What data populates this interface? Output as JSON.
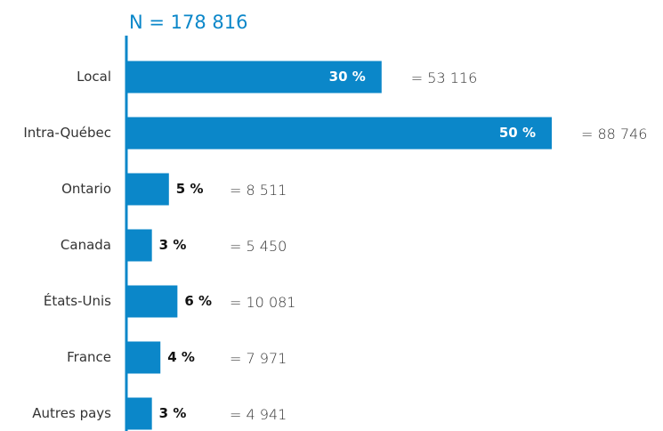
{
  "chart_data": {
    "type": "bar",
    "orientation": "horizontal",
    "title": "N = 178 816",
    "categories": [
      "Local",
      "Intra-Québec",
      "Ontario",
      "Canada",
      "États-Unis",
      "France",
      "Autres pays"
    ],
    "values": [
      30,
      50,
      5,
      3,
      6,
      4,
      3
    ],
    "value_labels": [
      "30 %",
      "50 %",
      "5 %",
      "3 %",
      "6 %",
      "4 %",
      "3 %"
    ],
    "count_labels": [
      "= 53 116",
      "= 88 746",
      "= 8 511",
      "= 5 450",
      "= 10 081",
      "= 7 971",
      "= 4 941"
    ],
    "color": "#0b87c9",
    "xlim": [
      0,
      50
    ]
  }
}
